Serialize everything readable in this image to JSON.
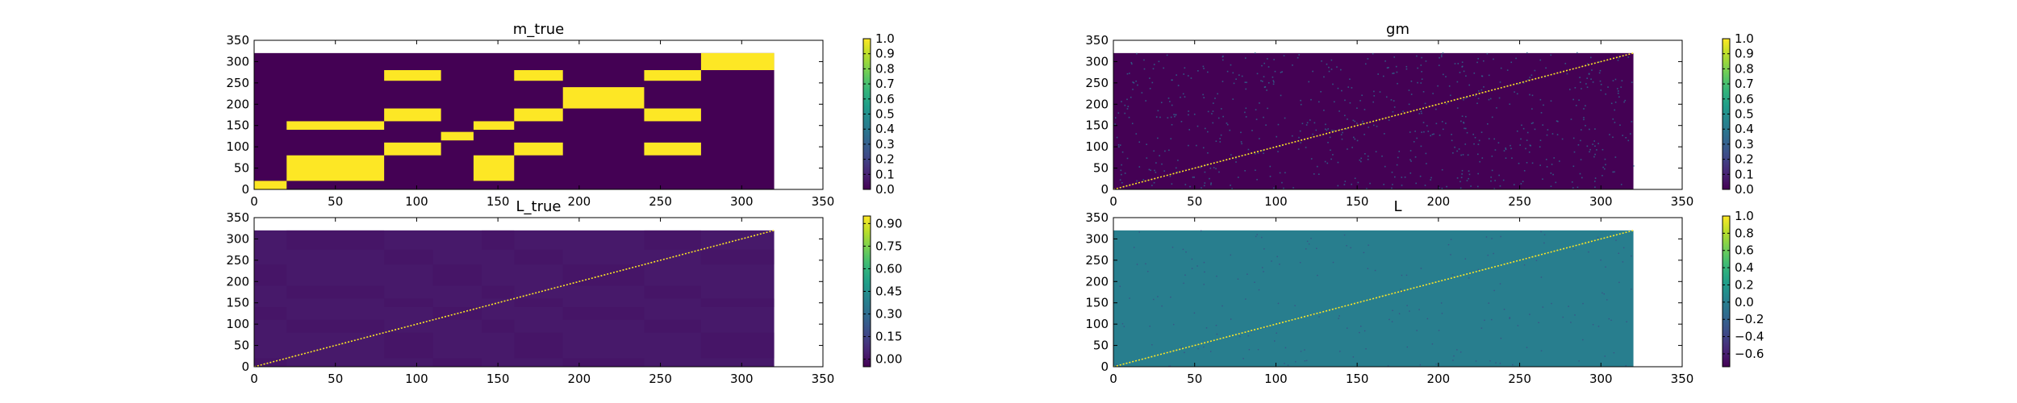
{
  "figure": {
    "background": "#ffffff"
  },
  "chart_data": [
    {
      "type": "heatmap",
      "title": "m_true",
      "xlim": [
        0,
        350
      ],
      "ylim": [
        0,
        350
      ],
      "xticks": [
        "0",
        "50",
        "100",
        "150",
        "200",
        "250",
        "300",
        "350"
      ],
      "yticks": [
        "0",
        "50",
        "100",
        "150",
        "200",
        "250",
        "300",
        "350"
      ],
      "matrix_size": 320,
      "background_value": 0.0,
      "blocks": [
        {
          "x": [
            0,
            20
          ],
          "y": [
            0,
            20
          ],
          "value": 1.0
        },
        {
          "x": [
            20,
            80
          ],
          "y": [
            20,
            80
          ],
          "value": 1.0
        },
        {
          "x": [
            20,
            80
          ],
          "y": [
            140,
            160
          ],
          "value": 1.0
        },
        {
          "x": [
            80,
            115
          ],
          "y": [
            80,
            110
          ],
          "value": 1.0
        },
        {
          "x": [
            80,
            115
          ],
          "y": [
            160,
            190
          ],
          "value": 1.0
        },
        {
          "x": [
            80,
            115
          ],
          "y": [
            255,
            280
          ],
          "value": 1.0
        },
        {
          "x": [
            115,
            135
          ],
          "y": [
            115,
            135
          ],
          "value": 1.0
        },
        {
          "x": [
            135,
            160
          ],
          "y": [
            20,
            80
          ],
          "value": 1.0
        },
        {
          "x": [
            135,
            160
          ],
          "y": [
            140,
            160
          ],
          "value": 1.0
        },
        {
          "x": [
            160,
            190
          ],
          "y": [
            80,
            110
          ],
          "value": 1.0
        },
        {
          "x": [
            160,
            190
          ],
          "y": [
            160,
            190
          ],
          "value": 1.0
        },
        {
          "x": [
            160,
            190
          ],
          "y": [
            255,
            280
          ],
          "value": 1.0
        },
        {
          "x": [
            190,
            240
          ],
          "y": [
            190,
            240
          ],
          "value": 1.0
        },
        {
          "x": [
            240,
            275
          ],
          "y": [
            80,
            110
          ],
          "value": 1.0
        },
        {
          "x": [
            240,
            275
          ],
          "y": [
            160,
            190
          ],
          "value": 1.0
        },
        {
          "x": [
            240,
            275
          ],
          "y": [
            255,
            280
          ],
          "value": 1.0
        },
        {
          "x": [
            275,
            320
          ],
          "y": [
            280,
            320
          ],
          "value": 1.0
        }
      ],
      "colorbar": {
        "vmin": 0.0,
        "vmax": 1.0,
        "ticks": [
          0.0,
          0.1,
          0.2,
          0.3,
          0.4,
          0.5,
          0.6,
          0.7,
          0.8,
          0.9,
          1.0
        ],
        "tick_labels": [
          "0.0",
          "0.1",
          "0.2",
          "0.3",
          "0.4",
          "0.5",
          "0.6",
          "0.7",
          "0.8",
          "0.9",
          "1.0"
        ]
      }
    },
    {
      "type": "heatmap",
      "title": "gm",
      "xlim": [
        0,
        350
      ],
      "ylim": [
        0,
        350
      ],
      "xticks": [
        "0",
        "50",
        "100",
        "150",
        "200",
        "250",
        "300",
        "350"
      ],
      "yticks": [
        "0",
        "50",
        "100",
        "150",
        "200",
        "250",
        "300",
        "350"
      ],
      "matrix_size": 320,
      "background_value": 0.0,
      "diagonal_value": 1.0,
      "scatter_noise_value": 0.35,
      "colorbar": {
        "vmin": 0.0,
        "vmax": 1.0,
        "ticks": [
          0.0,
          0.1,
          0.2,
          0.3,
          0.4,
          0.5,
          0.6,
          0.7,
          0.8,
          0.9,
          1.0
        ],
        "tick_labels": [
          "0.0",
          "0.1",
          "0.2",
          "0.3",
          "0.4",
          "0.5",
          "0.6",
          "0.7",
          "0.8",
          "0.9",
          "1.0"
        ]
      }
    },
    {
      "type": "heatmap",
      "title": "L_true",
      "xlim": [
        0,
        350
      ],
      "ylim": [
        0,
        350
      ],
      "xticks": [
        "0",
        "50",
        "100",
        "150",
        "200",
        "250",
        "300",
        "350"
      ],
      "yticks": [
        "0",
        "50",
        "100",
        "150",
        "200",
        "250",
        "300",
        "350"
      ],
      "matrix_size": 320,
      "background_value": 0.02,
      "block_value": 0.0,
      "diagonal_value": 0.95,
      "colorbar": {
        "vmin": -0.05,
        "vmax": 0.95,
        "ticks": [
          0.0,
          0.15,
          0.3,
          0.45,
          0.6,
          0.75,
          0.9
        ],
        "tick_labels": [
          "0.00",
          "0.15",
          "0.30",
          "0.45",
          "0.60",
          "0.75",
          "0.90"
        ]
      }
    },
    {
      "type": "heatmap",
      "title": "L",
      "xlim": [
        0,
        350
      ],
      "ylim": [
        0,
        350
      ],
      "xticks": [
        "0",
        "50",
        "100",
        "150",
        "200",
        "250",
        "300",
        "350"
      ],
      "yticks": [
        "0",
        "50",
        "100",
        "150",
        "200",
        "250",
        "300",
        "350"
      ],
      "matrix_size": 320,
      "background_value": 0.0,
      "diagonal_value": 1.0,
      "colorbar": {
        "vmin": -0.75,
        "vmax": 1.0,
        "ticks": [
          -0.6,
          -0.4,
          -0.2,
          0.0,
          0.2,
          0.4,
          0.6,
          0.8,
          1.0
        ],
        "tick_labels": [
          "−0.6",
          "−0.4",
          "−0.2",
          "0.0",
          "0.2",
          "0.4",
          "0.6",
          "0.8",
          "1.0"
        ]
      }
    }
  ]
}
